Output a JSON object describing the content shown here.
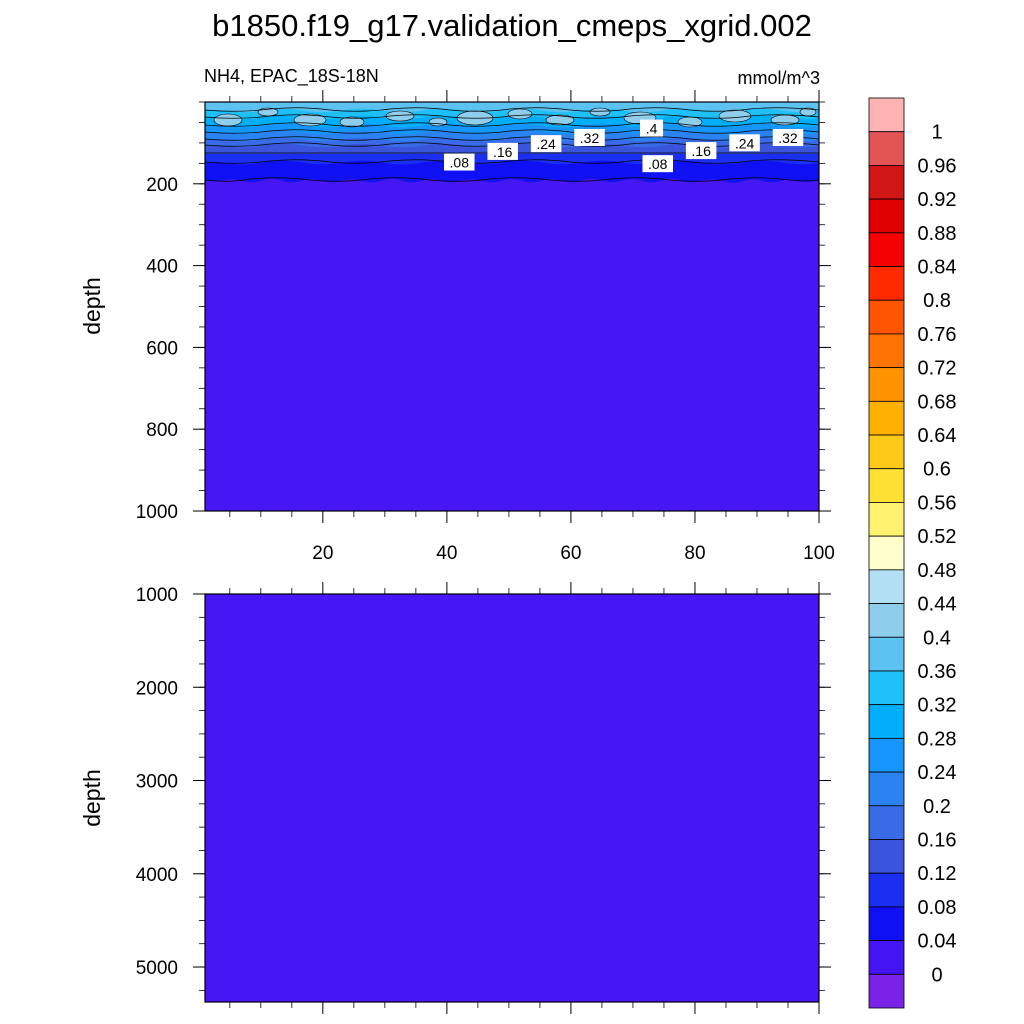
{
  "title": "b1850.f19_g17.validation_cmeps_xgrid.002",
  "left_subtitle": "NH4, EPAC_18S-18N",
  "right_subtitle": "mmol/m^3",
  "chart_data": [
    {
      "type": "heatmap",
      "panel": "upper",
      "ylabel": "depth",
      "xlim": [
        1,
        100
      ],
      "ylim": [
        0,
        1000
      ],
      "y_inverted": true,
      "x_ticks": [
        "20",
        "40",
        "60",
        "80",
        "100"
      ],
      "x_tick_values": [
        20,
        40,
        60,
        80,
        100
      ],
      "y_ticks": [
        "200",
        "400",
        "600",
        "800",
        "1000"
      ],
      "y_tick_values": [
        200,
        400,
        600,
        800,
        1000
      ],
      "contour_labels": [
        {
          "text": ".08",
          "x": 42,
          "y": 148
        },
        {
          "text": ".16",
          "x": 49,
          "y": 122
        },
        {
          "text": ".24",
          "x": 56,
          "y": 103
        },
        {
          "text": ".32",
          "x": 63,
          "y": 88
        },
        {
          "text": ".4",
          "x": 73,
          "y": 65
        },
        {
          "text": ".08",
          "x": 74,
          "y": 152
        },
        {
          "text": ".16",
          "x": 81,
          "y": 120
        },
        {
          "text": ".24",
          "x": 88,
          "y": 101
        },
        {
          "text": ".32",
          "x": 95,
          "y": 88
        }
      ],
      "note": "Values near 0.3-0.44 in upper ~60 m, decreasing to ~0.04 by ~180 m; 0-0.04 below 200 m"
    },
    {
      "type": "heatmap",
      "panel": "lower",
      "ylabel": "depth",
      "xlim": [
        1,
        100
      ],
      "ylim": [
        1000,
        5375
      ],
      "y_inverted": true,
      "y_ticks": [
        "1000",
        "2000",
        "3000",
        "4000",
        "5000"
      ],
      "y_tick_values": [
        1000,
        2000,
        3000,
        4000,
        5000
      ],
      "note": "Uniform 0-0.04 throughout"
    }
  ],
  "colorbar": {
    "labels": [
      "1",
      "0.96",
      "0.92",
      "0.88",
      "0.84",
      "0.8",
      "0.76",
      "0.72",
      "0.68",
      "0.64",
      "0.6",
      "0.56",
      "0.52",
      "0.48",
      "0.44",
      "0.4",
      "0.36",
      "0.32",
      "0.28",
      "0.24",
      "0.2",
      "0.16",
      "0.12",
      "0.08",
      "0.04",
      "0"
    ],
    "colors_top_to_bottom": [
      "#ffb3b3",
      "#e35455",
      "#d11616",
      "#df0000",
      "#f40202",
      "#ff2a00",
      "#ff5500",
      "#ff7300",
      "#ff9200",
      "#ffb000",
      "#ffc91a",
      "#ffe133",
      "#fff270",
      "#ffffcc",
      "#b3dff4",
      "#8fcded",
      "#5cc2f2",
      "#1fbff7",
      "#00aefa",
      "#1696fa",
      "#2a83f0",
      "#3a6be6",
      "#3a54dc",
      "#1b2ff0",
      "#1010f5",
      "#4514f5",
      "#7a22e8"
    ]
  },
  "colors": {
    "deep": "#4716f4",
    "band_008": "#1010f5",
    "band_012": "#1b2ff0",
    "band_016": "#3a54dc",
    "band_020": "#3a6be6",
    "band_024": "#2a83f0",
    "band_028": "#1696fa",
    "band_032": "#00aefa",
    "band_036": "#1fbff7",
    "band_040": "#5cc2f2",
    "band_044": "#8fcded"
  }
}
